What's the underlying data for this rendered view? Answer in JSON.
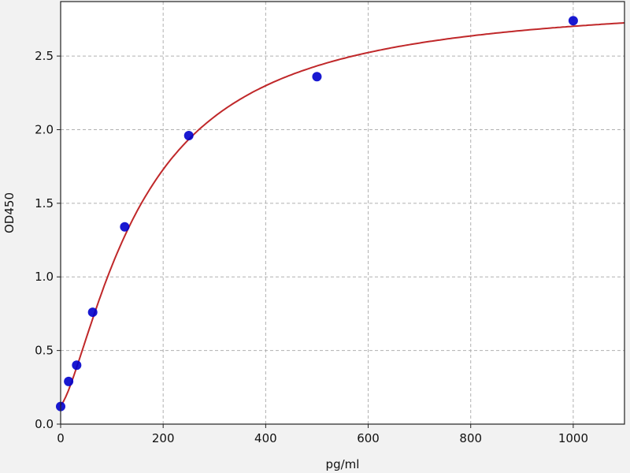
{
  "chart_data": {
    "type": "scatter",
    "title": "",
    "xlabel": "pg/ml",
    "ylabel": "OD450",
    "xlim": [
      0,
      1100
    ],
    "ylim": [
      0,
      2.87
    ],
    "xticks": [
      0,
      200,
      400,
      600,
      800,
      1000
    ],
    "yticks": [
      0.0,
      0.5,
      1.0,
      1.5,
      2.0,
      2.5
    ],
    "grid": true,
    "points": {
      "x": [
        0,
        15.6,
        31.25,
        62.5,
        125,
        250,
        500,
        1000
      ],
      "y": [
        0.12,
        0.29,
        0.4,
        0.76,
        1.34,
        1.96,
        2.36,
        2.74
      ],
      "color": "#0000cc"
    },
    "fit_curve": {
      "type": "four-parameter logistic",
      "color": "#c0282a"
    }
  }
}
